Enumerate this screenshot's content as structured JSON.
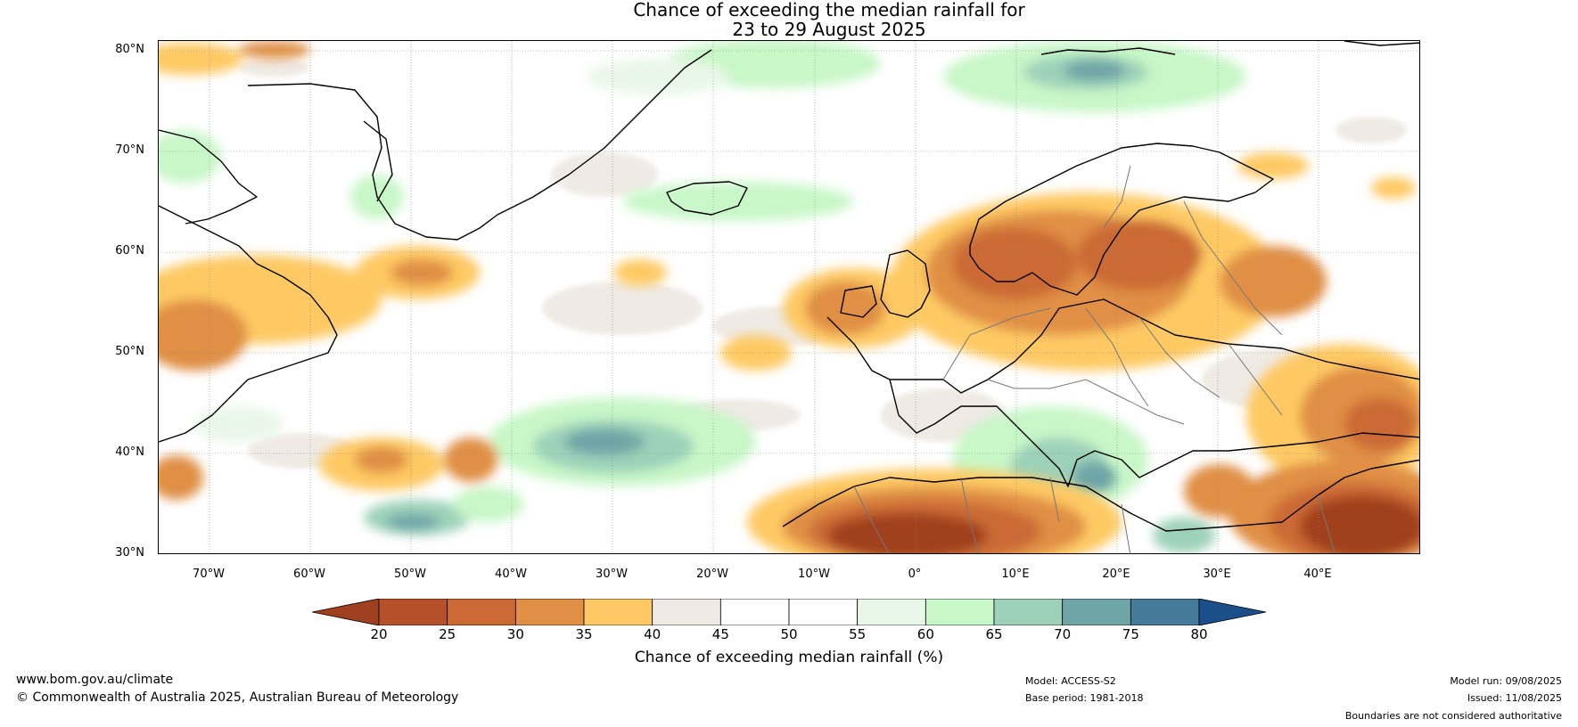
{
  "title": {
    "line1": "Chance of exceeding the median rainfall for",
    "line2": "23 to 29 August 2025"
  },
  "map": {
    "lat_labels": [
      "80°N",
      "70°N",
      "60°N",
      "50°N",
      "40°N",
      "30°N"
    ],
    "lon_labels": [
      "70°W",
      "60°W",
      "50°W",
      "40°W",
      "30°W",
      "20°W",
      "10°W",
      "0°",
      "10°E",
      "20°E",
      "30°E",
      "40°E"
    ],
    "lon_range": [
      -75,
      50
    ],
    "lat_range": [
      30,
      81
    ]
  },
  "colorbar": {
    "title": "Chance of exceeding median rainfall (%)",
    "ticks": [
      "20",
      "25",
      "30",
      "35",
      "40",
      "45",
      "50",
      "55",
      "60",
      "65",
      "70",
      "75",
      "80"
    ],
    "colors": [
      "#a0401e",
      "#b6502a",
      "#cb6a35",
      "#e08f45",
      "#fec964",
      "#efeae4",
      "#ffffff",
      "#ffffff",
      "#e9f7e8",
      "#c8f7c8",
      "#9dd2b9",
      "#6fa5a7",
      "#457b98",
      "#1a4f8a"
    ]
  },
  "footer": {
    "website": "www.bom.gov.au/climate",
    "copyright": "© Commonwealth of Australia 2025, Australian Bureau of Meteorology",
    "model": "Model: ACCESS-S2",
    "base_period": "Base period: 1981-2018",
    "model_run": "Model run: 09/08/2025",
    "issued": "Issued: 11/08/2025",
    "disclaimer": "Boundaries are not considered authoritative"
  }
}
